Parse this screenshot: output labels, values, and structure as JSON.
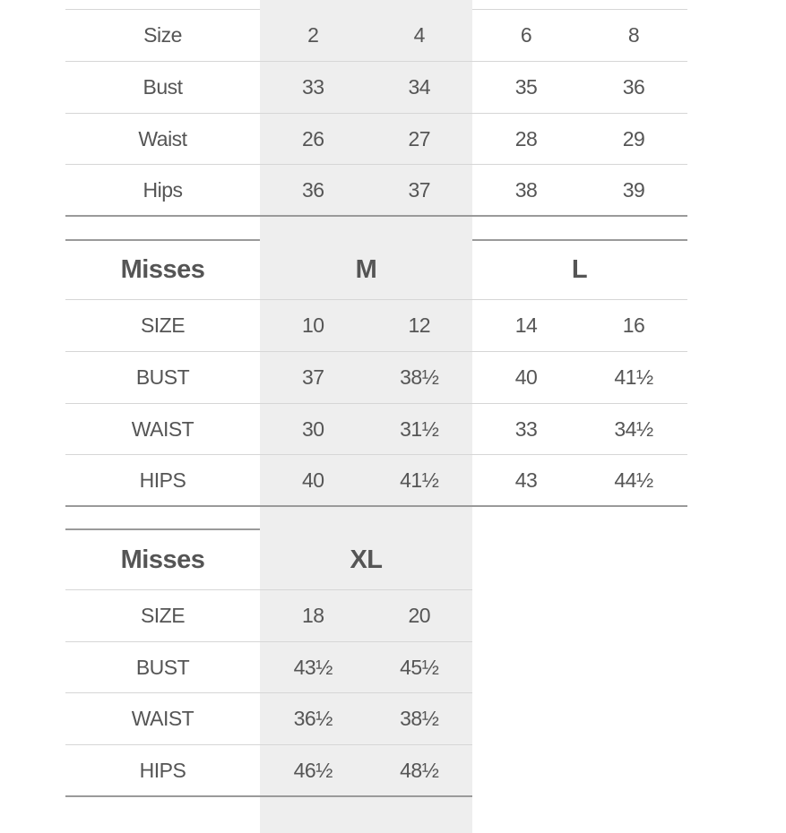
{
  "tables": [
    {
      "header": null,
      "rows": [
        {
          "label": "Size",
          "values": [
            "2",
            "4",
            "6",
            "8"
          ]
        },
        {
          "label": "Bust",
          "values": [
            "33",
            "34",
            "35",
            "36"
          ]
        },
        {
          "label": "Waist",
          "values": [
            "26",
            "27",
            "28",
            "29"
          ]
        },
        {
          "label": "Hips",
          "values": [
            "36",
            "37",
            "38",
            "39"
          ]
        }
      ]
    },
    {
      "header": {
        "label": "Misses",
        "groups": [
          "M",
          "L"
        ]
      },
      "rows": [
        {
          "label": "SIZE",
          "values": [
            "10",
            "12",
            "14",
            "16"
          ]
        },
        {
          "label": "BUST",
          "values": [
            "37",
            "38½",
            "40",
            "41½"
          ]
        },
        {
          "label": "WAIST",
          "values": [
            "30",
            "31½",
            "33",
            "34½"
          ]
        },
        {
          "label": "HIPS",
          "values": [
            "40",
            "41½",
            "43",
            "44½"
          ]
        }
      ]
    },
    {
      "header": {
        "label": "Misses",
        "groups": [
          "XL"
        ]
      },
      "rows": [
        {
          "label": "SIZE",
          "values": [
            "18",
            "20"
          ]
        },
        {
          "label": "BUST",
          "values": [
            "43½",
            "45½"
          ]
        },
        {
          "label": "WAIST",
          "values": [
            "36½",
            "38½"
          ]
        },
        {
          "label": "HIPS",
          "values": [
            "46½",
            "48½"
          ]
        }
      ]
    }
  ]
}
